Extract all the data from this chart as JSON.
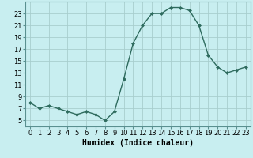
{
  "x": [
    0,
    1,
    2,
    3,
    4,
    5,
    6,
    7,
    8,
    9,
    10,
    11,
    12,
    13,
    14,
    15,
    16,
    17,
    18,
    19,
    20,
    21,
    22,
    23
  ],
  "y": [
    8,
    7,
    7.5,
    7,
    6.5,
    6,
    6.5,
    6,
    5,
    6.5,
    12,
    18,
    21,
    23,
    23,
    24,
    24,
    23.5,
    21,
    16,
    14,
    13,
    13.5,
    14
  ],
  "line_color": "#2e6b5e",
  "marker": "D",
  "marker_size": 2,
  "background_color": "#c8eef0",
  "grid_color": "#a8cece",
  "xlabel": "Humidex (Indice chaleur)",
  "xlim": [
    -0.5,
    23.5
  ],
  "ylim": [
    4,
    25
  ],
  "yticks": [
    5,
    7,
    9,
    11,
    13,
    15,
    17,
    19,
    21,
    23
  ],
  "xticks": [
    0,
    1,
    2,
    3,
    4,
    5,
    6,
    7,
    8,
    9,
    10,
    11,
    12,
    13,
    14,
    15,
    16,
    17,
    18,
    19,
    20,
    21,
    22,
    23
  ],
  "xlabel_fontsize": 7,
  "tick_fontsize": 6
}
